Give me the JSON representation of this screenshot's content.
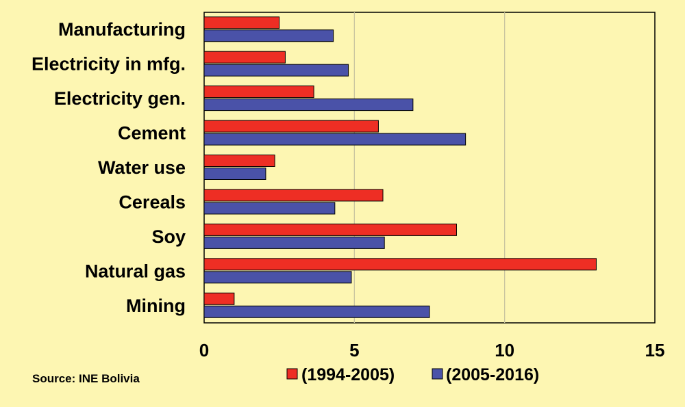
{
  "chart_data": {
    "type": "bar",
    "orientation": "horizontal",
    "categories": [
      "Manufacturing",
      "Electricity in mfg.",
      "Electricity gen.",
      "Cement",
      "Water use",
      "Cereals",
      "Soy",
      "Natural gas",
      "Mining"
    ],
    "series": [
      {
        "name": "(1994-2005)",
        "color": "#ee2e24",
        "values": [
          2.5,
          2.7,
          3.65,
          5.8,
          2.35,
          5.95,
          8.4,
          13.05,
          1.0
        ]
      },
      {
        "name": "(2005-2016)",
        "color": "#4a52a8",
        "values": [
          4.3,
          4.8,
          6.95,
          8.7,
          2.05,
          4.35,
          6.0,
          4.9,
          7.5
        ]
      }
    ],
    "xlim": [
      0,
      15
    ],
    "xticks": [
      0,
      5,
      10,
      15
    ],
    "grid": true,
    "legend_position": "bottom-center"
  },
  "source": "Source: INE Bolivia",
  "colors": {
    "background": "#fdf6b2",
    "plot_area": "#fdf6b2",
    "grid": "#c9c5a0"
  }
}
